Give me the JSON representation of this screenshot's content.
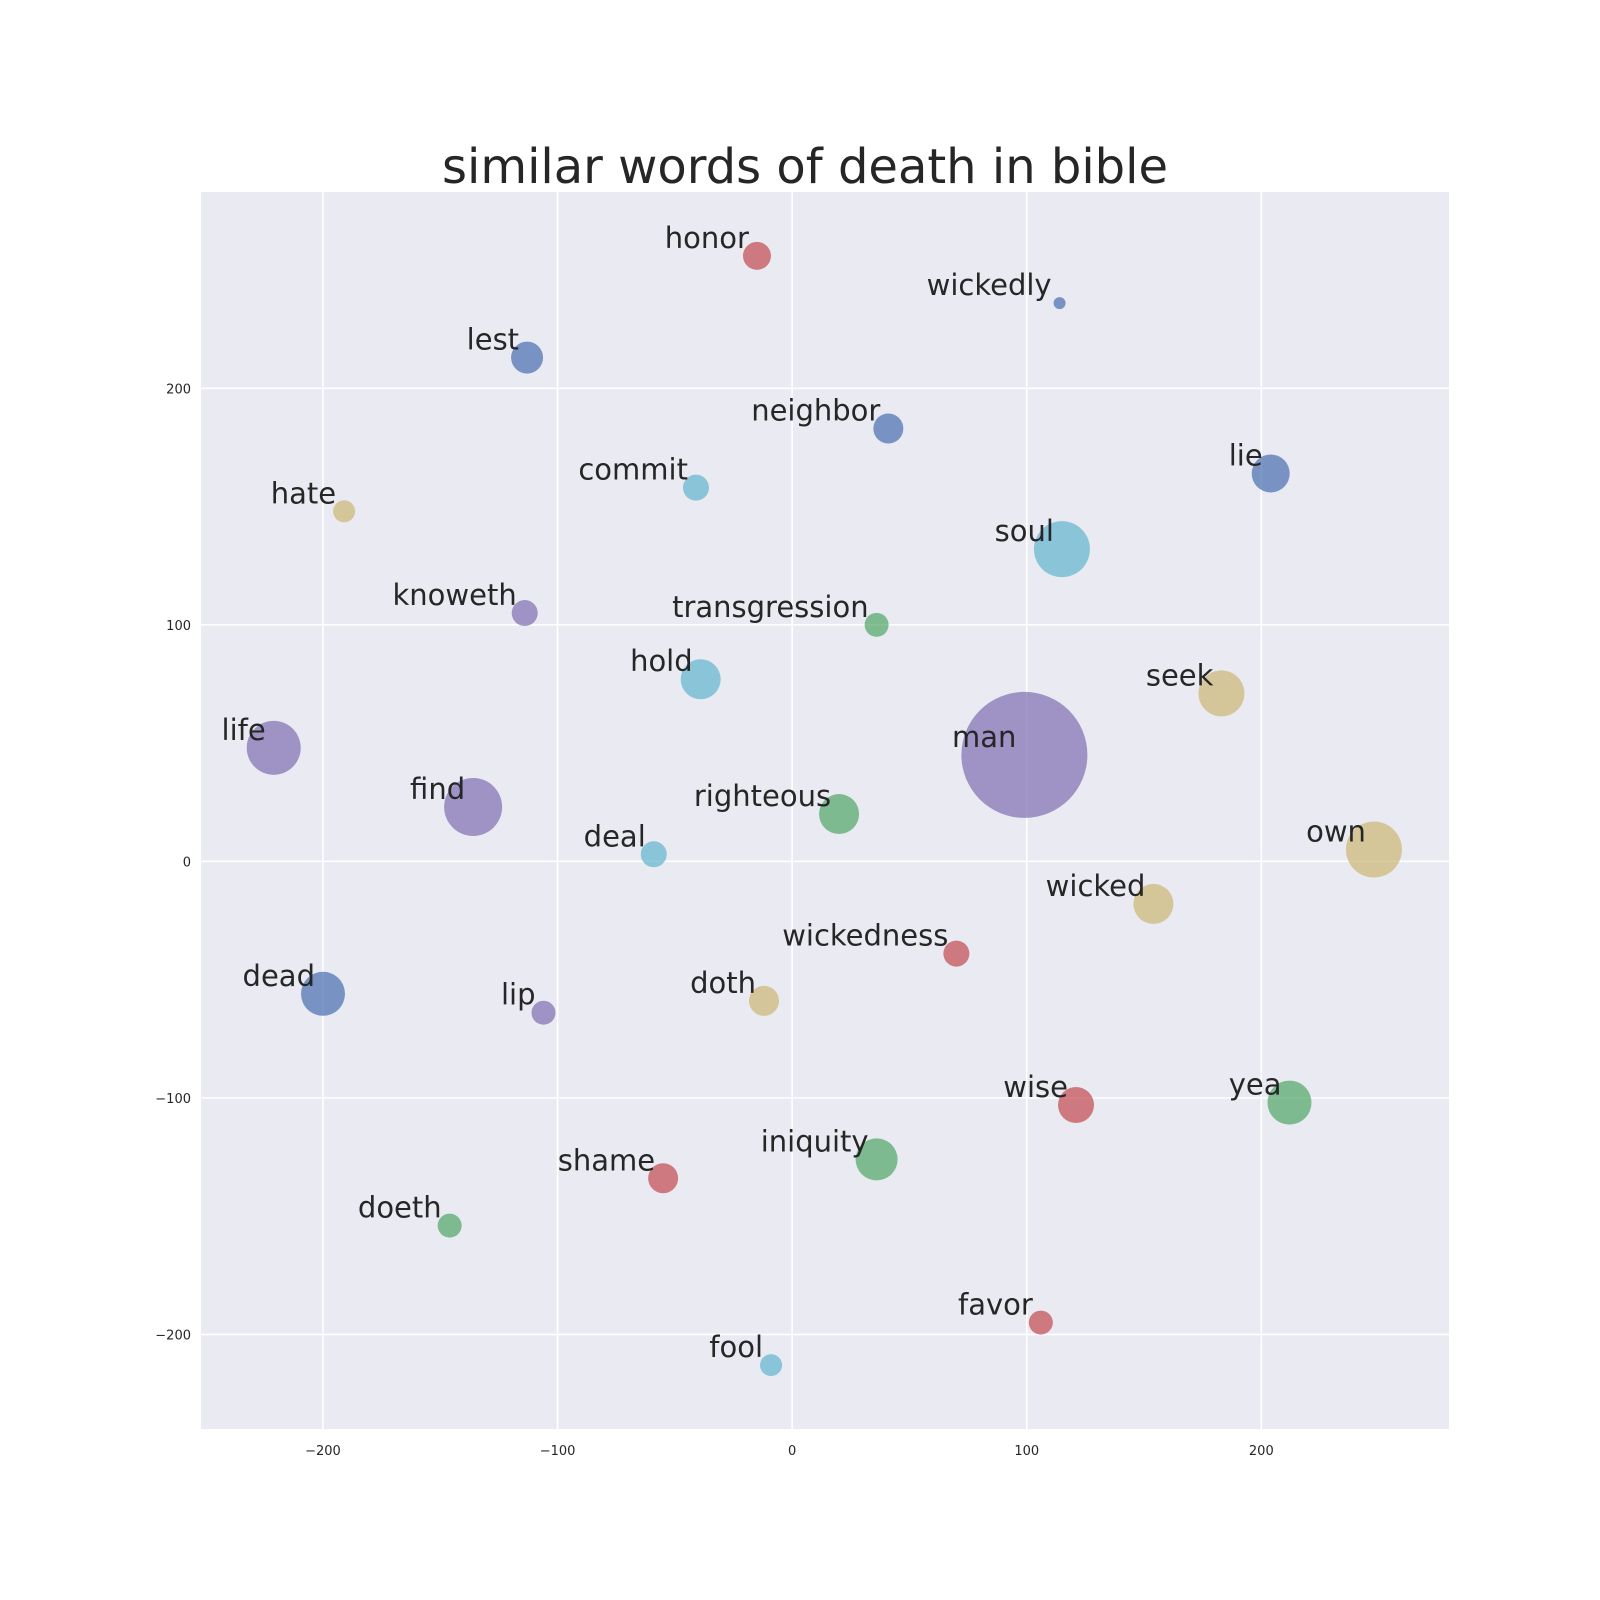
{
  "chart_data": {
    "type": "scatter",
    "title": "similar words of death in bible",
    "xlabel": "",
    "ylabel": "",
    "xlim": [
      -252,
      280
    ],
    "ylim": [
      -240,
      283
    ],
    "xticks": [
      -200,
      -100,
      0,
      100,
      200
    ],
    "yticks": [
      -200,
      -100,
      0,
      100,
      200
    ],
    "xtick_labels": [
      "−200",
      "−100",
      "0",
      "100",
      "200"
    ],
    "ytick_labels": [
      "−200",
      "−100",
      "0",
      "100",
      "200"
    ],
    "grid": true,
    "background_color": "#EAEAF2",
    "palette": {
      "blue": "#4C72B0",
      "green": "#55A868",
      "red": "#C44E52",
      "purple": "#8172B2",
      "yellow": "#CCB974",
      "cyan": "#64B5CD"
    },
    "points": [
      {
        "word": "honor",
        "x": -15,
        "y": 256,
        "size": 14,
        "color": "#C44E52"
      },
      {
        "word": "wickedly",
        "x": 114,
        "y": 236,
        "size": 6,
        "color": "#4C72B0"
      },
      {
        "word": "lest",
        "x": -113,
        "y": 213,
        "size": 16,
        "color": "#4C72B0"
      },
      {
        "word": "neighbor",
        "x": 41,
        "y": 183,
        "size": 15,
        "color": "#4C72B0"
      },
      {
        "word": "lie",
        "x": 204,
        "y": 164,
        "size": 19,
        "color": "#4C72B0"
      },
      {
        "word": "commit",
        "x": -41,
        "y": 158,
        "size": 13,
        "color": "#64B5CD"
      },
      {
        "word": "hate",
        "x": -191,
        "y": 148,
        "size": 11,
        "color": "#CCB974"
      },
      {
        "word": "soul",
        "x": 115,
        "y": 132,
        "size": 28,
        "color": "#64B5CD"
      },
      {
        "word": "knoweth",
        "x": -114,
        "y": 105,
        "size": 13,
        "color": "#8172B2"
      },
      {
        "word": "transgression",
        "x": 36,
        "y": 100,
        "size": 12,
        "color": "#55A868"
      },
      {
        "word": "hold",
        "x": -39,
        "y": 77,
        "size": 20,
        "color": "#64B5CD"
      },
      {
        "word": "seek",
        "x": 183,
        "y": 71,
        "size": 23,
        "color": "#CCB974"
      },
      {
        "word": "life",
        "x": -221,
        "y": 48,
        "size": 27,
        "color": "#8172B2"
      },
      {
        "word": "man",
        "x": 99,
        "y": 45,
        "size": 63,
        "color": "#8172B2"
      },
      {
        "word": "find",
        "x": -136,
        "y": 23,
        "size": 29,
        "color": "#8172B2"
      },
      {
        "word": "righteous",
        "x": 20,
        "y": 20,
        "size": 20,
        "color": "#55A868"
      },
      {
        "word": "own",
        "x": 248,
        "y": 5,
        "size": 28,
        "color": "#CCB974"
      },
      {
        "word": "deal",
        "x": -59,
        "y": 3,
        "size": 13,
        "color": "#64B5CD"
      },
      {
        "word": "wicked",
        "x": 154,
        "y": -18,
        "size": 20,
        "color": "#CCB974"
      },
      {
        "word": "wickedness",
        "x": 70,
        "y": -39,
        "size": 13,
        "color": "#C44E52"
      },
      {
        "word": "dead",
        "x": -200,
        "y": -56,
        "size": 22,
        "color": "#4C72B0"
      },
      {
        "word": "doth",
        "x": -12,
        "y": -59,
        "size": 15,
        "color": "#CCB974"
      },
      {
        "word": "lip",
        "x": -106,
        "y": -64,
        "size": 12,
        "color": "#8172B2"
      },
      {
        "word": "wise",
        "x": 121,
        "y": -103,
        "size": 18,
        "color": "#C44E52"
      },
      {
        "word": "yea",
        "x": 212,
        "y": -102,
        "size": 22,
        "color": "#55A868"
      },
      {
        "word": "iniquity",
        "x": 36,
        "y": -126,
        "size": 21,
        "color": "#55A868"
      },
      {
        "word": "shame",
        "x": -55,
        "y": -134,
        "size": 15,
        "color": "#C44E52"
      },
      {
        "word": "doeth",
        "x": -146,
        "y": -154,
        "size": 12,
        "color": "#55A868"
      },
      {
        "word": "favor",
        "x": 106,
        "y": -195,
        "size": 12,
        "color": "#C44E52"
      },
      {
        "word": "fool",
        "x": -9,
        "y": -213,
        "size": 11,
        "color": "#64B5CD"
      }
    ]
  }
}
